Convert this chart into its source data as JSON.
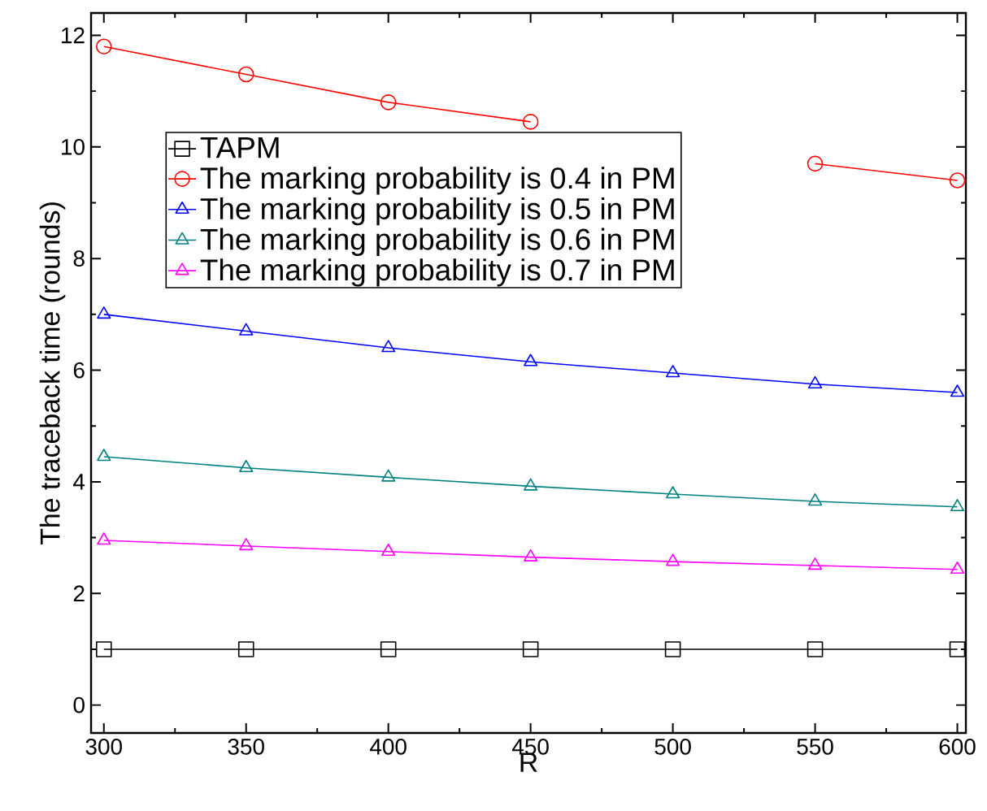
{
  "chart_data": {
    "type": "line",
    "xlabel": "R",
    "ylabel": "The traceback time (rounds)",
    "x": [
      300,
      350,
      400,
      450,
      500,
      550,
      600
    ],
    "xlim": [
      295.5,
      603
    ],
    "ylim": [
      -0.5,
      12.4
    ],
    "xticks": [
      300,
      350,
      400,
      450,
      500,
      550,
      600
    ],
    "yticks": [
      0,
      2,
      4,
      6,
      8,
      10,
      12
    ],
    "legend": "top left",
    "grid": false,
    "series": [
      {
        "name": "TAPM",
        "color": "#000000",
        "marker": "square",
        "values": [
          1,
          1,
          1,
          1,
          1,
          1,
          1
        ]
      },
      {
        "name": "The marking probability is 0.4 in PM",
        "color": "#ff0000",
        "marker": "circle",
        "values": [
          11.8,
          11.3,
          10.8,
          10.45,
          null,
          9.7,
          9.4
        ]
      },
      {
        "name": "The marking probability is 0.5 in PM",
        "color": "#0000ff",
        "marker": "triangle",
        "values": [
          7.0,
          6.7,
          6.4,
          6.15,
          5.95,
          5.75,
          5.6
        ]
      },
      {
        "name": "The marking probability is 0.6 in PM",
        "color": "#008080",
        "marker": "triangle",
        "values": [
          4.45,
          4.25,
          4.08,
          3.92,
          3.78,
          3.65,
          3.55
        ]
      },
      {
        "name": "The marking probability is 0.7 in PM",
        "color": "#ff00ff",
        "marker": "triangle",
        "values": [
          2.95,
          2.85,
          2.75,
          2.65,
          2.57,
          2.5,
          2.43
        ]
      }
    ]
  }
}
